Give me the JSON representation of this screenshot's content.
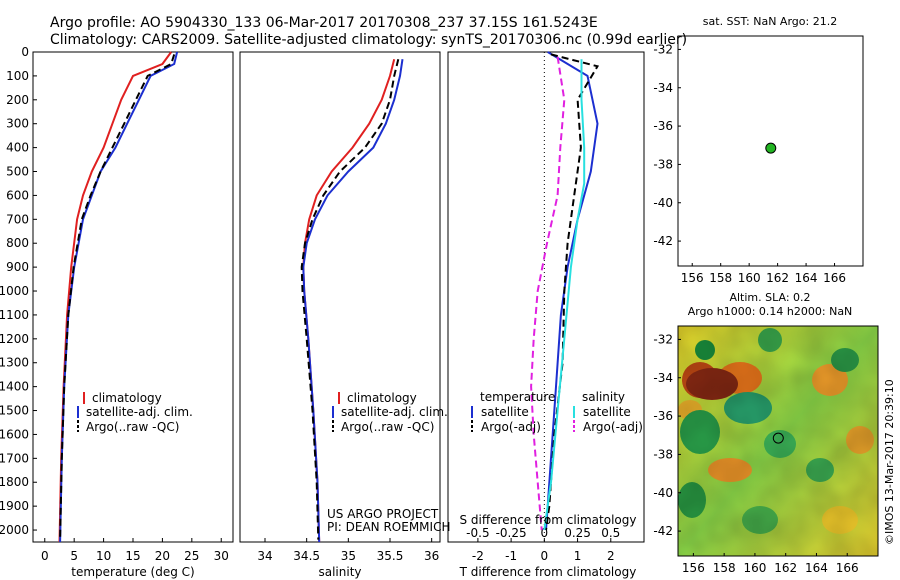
{
  "header": {
    "line1": "Argo profile: AO 5904330_133 06-Mar-2017 20170308_237 37.15S 161.5243E",
    "line2": "Climatology: CARS2009. Satellite-adjusted climatology: synTS_20170306.nc (0.99d earlier)"
  },
  "credits": {
    "project": "US ARGO PROJECT",
    "pi": "PI: DEAN ROEMMICH",
    "watermark": "©IMOS 13-Mar-2017 20:39:10"
  },
  "colors": {
    "climatology": "#e02020",
    "satellite": "#1c2fd0",
    "argo": "#000000",
    "sat_salinity": "#28e0e0",
    "argo_salinity": "#e020e0",
    "marker": "#22b422"
  },
  "chart_data": [
    {
      "type": "line",
      "id": "temperature",
      "xlabel": "temperature (deg C)",
      "ylabel": "",
      "xlim": [
        -2,
        32
      ],
      "ylim": [
        2050,
        0
      ],
      "xticks": [
        0,
        5,
        10,
        15,
        20,
        25,
        30
      ],
      "yticks": [
        0,
        100,
        200,
        300,
        400,
        500,
        600,
        700,
        800,
        900,
        1000,
        1100,
        1200,
        1300,
        1400,
        1500,
        1600,
        1700,
        1800,
        1900,
        2000
      ],
      "legend": [
        "climatology",
        "satellite-adj. clim.",
        "Argo(..raw -QC)"
      ],
      "legend_placement": "lower-center",
      "series": [
        {
          "name": "climatology",
          "x": [
            21.5,
            20,
            15,
            13,
            11.5,
            10,
            8,
            6.5,
            5.5,
            4.5,
            3.8,
            3.2,
            2.8,
            2.5
          ],
          "y": [
            0,
            50,
            100,
            200,
            300,
            400,
            500,
            600,
            700,
            900,
            1100,
            1400,
            1700,
            2050
          ]
        },
        {
          "name": "satellite-adj. clim.",
          "x": [
            22.5,
            22,
            18,
            16,
            14,
            12,
            9.5,
            8,
            6.5,
            5,
            4,
            3.3,
            2.9,
            2.6
          ],
          "y": [
            0,
            50,
            100,
            200,
            300,
            400,
            500,
            600,
            700,
            900,
            1100,
            1400,
            1700,
            2050
          ]
        },
        {
          "name": "Argo(..raw -QC)",
          "x": [
            22,
            21.5,
            17.5,
            15.5,
            13.5,
            11.5,
            9.5,
            7.8,
            6.3,
            4.9,
            4,
            3.3,
            2.9,
            2.6
          ],
          "y": [
            10,
            50,
            100,
            200,
            300,
            400,
            500,
            600,
            700,
            900,
            1100,
            1400,
            1700,
            2040
          ]
        }
      ]
    },
    {
      "type": "line",
      "id": "salinity",
      "xlabel": "salinity",
      "ylabel": "",
      "xlim": [
        33.7,
        36.1
      ],
      "ylim": [
        2050,
        0
      ],
      "xticks": [
        34,
        34.5,
        35,
        35.5,
        36
      ],
      "xticklabels": [
        "34",
        "34.5",
        "35",
        "35.5",
        "36"
      ],
      "legend": [
        "climatology",
        "satellite-adj. clim.",
        "Argo(..raw -QC)"
      ],
      "legend_placement": "lower-center",
      "series": [
        {
          "name": "climatology",
          "x": [
            35.55,
            35.5,
            35.4,
            35.25,
            35.05,
            34.8,
            34.62,
            34.53,
            34.48,
            34.46,
            34.47,
            34.52,
            34.58,
            34.63,
            34.65
          ],
          "y": [
            30,
            100,
            200,
            300,
            400,
            500,
            600,
            700,
            800,
            900,
            1000,
            1200,
            1500,
            1800,
            2050
          ]
        },
        {
          "name": "satellite-adj. clim.",
          "x": [
            35.65,
            35.62,
            35.55,
            35.45,
            35.3,
            35.0,
            34.75,
            34.6,
            34.5,
            34.46,
            34.47,
            34.52,
            34.58,
            34.63,
            34.65
          ],
          "y": [
            30,
            100,
            200,
            300,
            400,
            500,
            600,
            700,
            800,
            900,
            1000,
            1200,
            1500,
            1800,
            2050
          ]
        },
        {
          "name": "Argo(..raw -QC)",
          "x": [
            35.6,
            35.55,
            35.5,
            35.4,
            35.2,
            34.9,
            34.7,
            34.57,
            34.48,
            34.44,
            34.45,
            34.5,
            34.57,
            34.62,
            34.64
          ],
          "y": [
            30,
            100,
            200,
            300,
            400,
            500,
            600,
            700,
            800,
            900,
            1000,
            1200,
            1500,
            1800,
            2040
          ]
        }
      ]
    },
    {
      "type": "line",
      "id": "difference",
      "xlabel": "T difference from climatology",
      "xlabel_top": "S difference from climatology",
      "xlim": [
        -2.9,
        3
      ],
      "ylim": [
        2050,
        0
      ],
      "xticks": [
        -2,
        -1,
        0,
        1,
        2
      ],
      "top_xticks": [
        -0.5,
        -0.25,
        0,
        0.25,
        0.5
      ],
      "top_xticklabels": [
        "-0.5",
        "-0.25",
        "0",
        "0.25",
        "0.5"
      ],
      "legend_temperature_title": "temperature",
      "legend_salinity_title": "salinity",
      "legend": [
        "satellite",
        "Argo(-adj)",
        "satellite",
        "Argo(-adj)"
      ],
      "legend_placement": "lower-center",
      "series": [
        {
          "name": "satellite",
          "group": "temperature",
          "x": [
            0.1,
            1.3,
            1.6,
            1.4,
            1.0,
            0.7,
            0.5,
            0.35,
            0.2,
            0.1,
            0.05
          ],
          "y": [
            0,
            100,
            300,
            500,
            700,
            900,
            1100,
            1400,
            1700,
            1900,
            2000
          ]
        },
        {
          "name": "Argo(-adj)",
          "group": "temperature",
          "x": [
            0.2,
            1.6,
            1.0,
            1.1,
            0.9,
            0.7,
            0.6,
            0.55,
            0.3,
            0.15,
            0.05
          ],
          "y": [
            10,
            60,
            200,
            400,
            600,
            800,
            1000,
            1300,
            1600,
            1900,
            2000
          ]
        },
        {
          "name": "satellite",
          "group": "salinity",
          "x": [
            0.28,
            0.28,
            0.28,
            0.3,
            0.3,
            0.25,
            0.2,
            0.15,
            0.1,
            0.05,
            0.0
          ],
          "y": [
            30,
            100,
            200,
            400,
            550,
            700,
            900,
            1200,
            1500,
            1800,
            2000
          ]
        },
        {
          "name": "Argo(-adj)",
          "group": "salinity",
          "x": [
            0.1,
            0.15,
            0.12,
            0.1,
            0.02,
            -0.05,
            -0.08,
            -0.1,
            -0.08,
            -0.05,
            -0.02
          ],
          "y": [
            20,
            200,
            400,
            600,
            800,
            1000,
            1200,
            1400,
            1600,
            1800,
            2000
          ]
        }
      ]
    },
    {
      "type": "scatter",
      "id": "sst-map",
      "title": "sat. SST: NaN Argo: 21.2",
      "xlim": [
        155,
        168
      ],
      "ylim": [
        -43.3,
        -31.3
      ],
      "xticks": [
        156,
        158,
        160,
        162,
        164,
        166
      ],
      "yticks": [
        -32,
        -34,
        -36,
        -38,
        -40,
        -42
      ],
      "points": [
        {
          "x": 161.52,
          "y": -37.15
        }
      ]
    },
    {
      "type": "heatmap",
      "id": "sla-map",
      "title_line1": "Altim. SLA: 0.2",
      "title_line2": "Argo h1000: 0.14 h2000: NaN",
      "xlim": [
        155,
        168
      ],
      "ylim": [
        -43.3,
        -31.3
      ],
      "xticks": [
        156,
        158,
        160,
        162,
        164,
        166
      ],
      "yticks": [
        -32,
        -34,
        -36,
        -38,
        -40,
        -42
      ],
      "points": [
        {
          "x": 161.52,
          "y": -37.15
        }
      ]
    }
  ]
}
